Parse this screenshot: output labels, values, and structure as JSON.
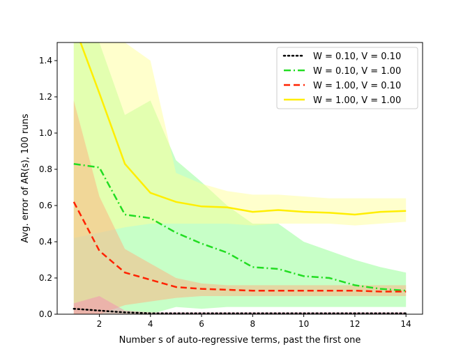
{
  "chart_data": {
    "type": "line",
    "title": "",
    "xlabel": "Number s of auto-regressive terms, past the first one",
    "ylabel": "Avg. error of AR(s), 100 runs",
    "xlim": [
      0.35,
      14.65
    ],
    "ylim": [
      0,
      1.5
    ],
    "xticks": [
      2,
      4,
      6,
      8,
      10,
      12,
      14
    ],
    "yticks": [
      0.0,
      0.2,
      0.4,
      0.6,
      0.8,
      1.0,
      1.2,
      1.4
    ],
    "ytick_labels": [
      "0.0",
      "0.2",
      "0.4",
      "0.6",
      "0.8",
      "1.0",
      "1.2",
      "1.4"
    ],
    "grid": false,
    "legend_position": "top-right",
    "x": [
      1,
      2,
      3,
      4,
      5,
      6,
      7,
      8,
      9,
      10,
      11,
      12,
      13,
      14
    ],
    "series": [
      {
        "name": "W = 0.10, V = 0.10",
        "color": "#000000",
        "band_color": "#f48fb1",
        "line_style": "dotted",
        "values": [
          0.03,
          0.02,
          0.01,
          0.005,
          0.005,
          0.005,
          0.005,
          0.005,
          0.005,
          0.005,
          0.005,
          0.005,
          0.005,
          0.005
        ],
        "lower": [
          0.0,
          0.0,
          0.0,
          0.0,
          0.0,
          0.0,
          0.0,
          0.0,
          0.0,
          0.0,
          0.0,
          0.0,
          0.0,
          0.0
        ],
        "upper": [
          0.06,
          0.1,
          0.02,
          0.01,
          0.01,
          0.01,
          0.01,
          0.01,
          0.01,
          0.01,
          0.01,
          0.01,
          0.01,
          0.01
        ]
      },
      {
        "name": "W = 0.10, V = 1.00",
        "color": "#22dd22",
        "band_color": "#90ff90",
        "line_style": "dashdot",
        "values": [
          0.83,
          0.81,
          0.55,
          0.53,
          0.45,
          0.39,
          0.34,
          0.26,
          0.25,
          0.21,
          0.2,
          0.16,
          0.14,
          0.13
        ],
        "lower": [
          0.0,
          0.0,
          0.0,
          0.0,
          0.04,
          0.03,
          0.04,
          0.04,
          0.04,
          0.04,
          0.04,
          0.04,
          0.04,
          0.04
        ],
        "upper": [
          1.5,
          1.5,
          1.1,
          1.18,
          0.85,
          0.73,
          0.6,
          0.5,
          0.5,
          0.4,
          0.35,
          0.3,
          0.26,
          0.23
        ]
      },
      {
        "name": "W = 1.00, V = 0.10",
        "color": "#ff2200",
        "band_color": "#ffb080",
        "line_style": "dashed",
        "values": [
          0.62,
          0.35,
          0.23,
          0.19,
          0.15,
          0.14,
          0.135,
          0.13,
          0.13,
          0.13,
          0.13,
          0.13,
          0.125,
          0.125
        ],
        "lower": [
          0.0,
          0.0,
          0.05,
          0.07,
          0.09,
          0.1,
          0.1,
          0.1,
          0.1,
          0.1,
          0.1,
          0.1,
          0.1,
          0.1
        ],
        "upper": [
          1.18,
          0.65,
          0.36,
          0.28,
          0.2,
          0.17,
          0.16,
          0.16,
          0.16,
          0.16,
          0.16,
          0.16,
          0.16,
          0.16
        ]
      },
      {
        "name": "W = 1.00, V = 1.00",
        "color": "#ffee00",
        "band_color": "#ffff99",
        "line_style": "solid",
        "values": [
          1.6,
          1.22,
          0.83,
          0.67,
          0.62,
          0.595,
          0.59,
          0.565,
          0.575,
          0.565,
          0.56,
          0.55,
          0.565,
          0.57
        ],
        "lower": [
          0.42,
          0.45,
          0.48,
          0.5,
          0.5,
          0.5,
          0.5,
          0.49,
          0.5,
          0.5,
          0.5,
          0.49,
          0.5,
          0.51
        ],
        "upper": [
          1.5,
          1.5,
          1.5,
          1.4,
          0.78,
          0.72,
          0.68,
          0.66,
          0.66,
          0.65,
          0.64,
          0.64,
          0.64,
          0.64
        ]
      }
    ]
  }
}
